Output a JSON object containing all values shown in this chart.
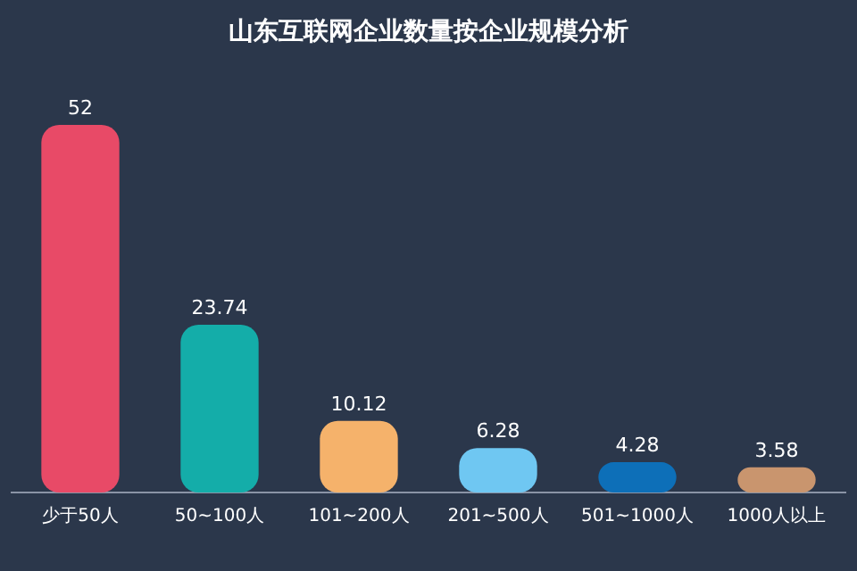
{
  "chart_data": {
    "type": "bar",
    "title": "山东互联网企业数量按企业规模分析",
    "categories": [
      "少于50人",
      "50~100人",
      "101~200人",
      "201~500人",
      "501~1000人",
      "1000人以上"
    ],
    "values": [
      52,
      23.74,
      10.12,
      6.28,
      4.28,
      3.58
    ],
    "colors": [
      "#e84a67",
      "#14ada9",
      "#f5b26b",
      "#6fc7f2",
      "#0d6fb8",
      "#c9956e"
    ],
    "data_labels": true
  }
}
